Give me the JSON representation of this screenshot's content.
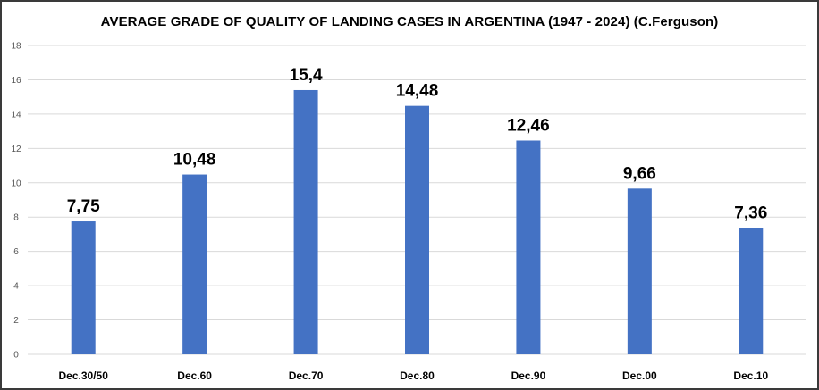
{
  "chart_data": {
    "type": "bar",
    "title": "AVERAGE GRADE OF QUALITY OF LANDING CASES IN ARGENTINA (1947 - 2024) (C.Ferguson)",
    "categories": [
      "Dec.30/50",
      "Dec.60",
      "Dec.70",
      "Dec.80",
      "Dec.90",
      "Dec.00",
      "Dec.10"
    ],
    "values": [
      7.75,
      10.48,
      15.4,
      14.48,
      12.46,
      9.66,
      7.36
    ],
    "data_labels": [
      "7,75",
      "10,48",
      "15,4",
      "14,48",
      "12,46",
      "9,66",
      "7,36"
    ],
    "y_ticks": [
      "0",
      "2",
      "4",
      "6",
      "8",
      "10",
      "12",
      "14",
      "16",
      "18"
    ],
    "ylim": [
      0,
      18
    ],
    "xlabel": "",
    "ylabel": "",
    "grid": true,
    "legend": "none",
    "bar_color": "#4472c4",
    "grid_color": "#d9d9d9"
  }
}
